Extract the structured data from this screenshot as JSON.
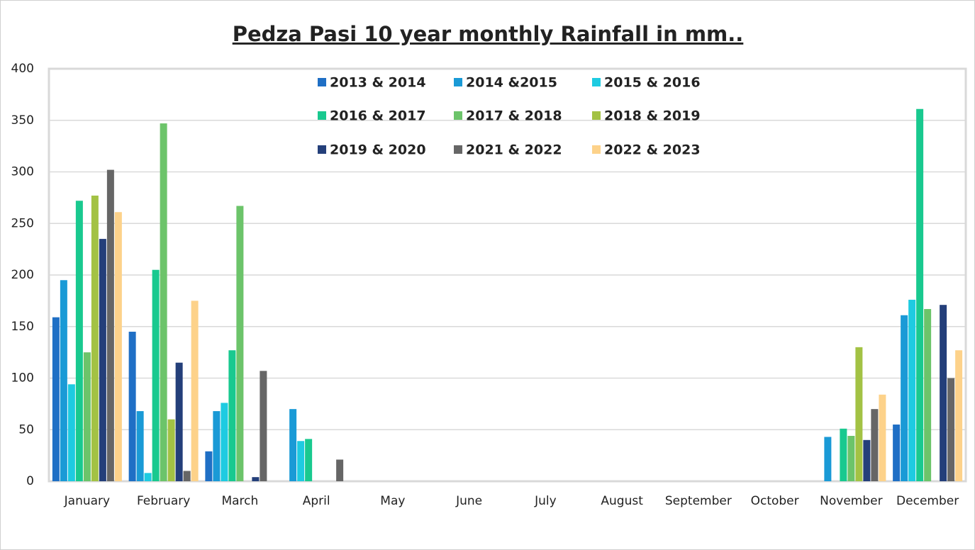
{
  "chart_data": {
    "type": "bar",
    "title": "Pedza Pasi 10 year monthly Rainfall in mm..",
    "categories": [
      "January",
      "February",
      "March",
      "April",
      "May",
      "June",
      "July",
      "August",
      "September",
      "October",
      "November",
      "December"
    ],
    "series": [
      {
        "name": "2013 & 2014",
        "color": "#1f6fc5",
        "values": [
          159,
          145,
          29,
          0,
          0,
          0,
          0,
          0,
          0,
          0,
          0,
          55
        ]
      },
      {
        "name": "2014 &2015",
        "color": "#1a9ad6",
        "values": [
          195,
          68,
          68,
          70,
          0,
          0,
          0,
          0,
          0,
          0,
          43,
          161
        ]
      },
      {
        "name": "2015 & 2016",
        "color": "#1ecbe1",
        "values": [
          94,
          8,
          76,
          39,
          0,
          0,
          0,
          0,
          0,
          0,
          0,
          176
        ]
      },
      {
        "name": "2016 & 2017",
        "color": "#19c98f",
        "values": [
          272,
          205,
          127,
          41,
          0,
          0,
          0,
          0,
          0,
          0,
          51,
          361
        ]
      },
      {
        "name": "2017 & 2018",
        "color": "#6cc46a",
        "values": [
          125,
          347,
          267,
          0,
          0,
          0,
          0,
          0,
          0,
          0,
          44,
          167
        ]
      },
      {
        "name": "2018 & 2019",
        "color": "#a3c244",
        "values": [
          277,
          60,
          0,
          0,
          0,
          0,
          0,
          0,
          0,
          0,
          130,
          0
        ]
      },
      {
        "name": "2019 & 2020",
        "color": "#243f7a",
        "values": [
          235,
          115,
          4,
          0,
          0,
          0,
          0,
          0,
          0,
          0,
          40,
          171
        ]
      },
      {
        "name": "2021 & 2022",
        "color": "#666666",
        "values": [
          302,
          10,
          107,
          21,
          0,
          0,
          0,
          0,
          0,
          0,
          70,
          100
        ]
      },
      {
        "name": "2022 & 2023",
        "color": "#fdd28a",
        "values": [
          261,
          175,
          0,
          0,
          0,
          0,
          0,
          0,
          0,
          0,
          84,
          127
        ]
      }
    ],
    "ylim": [
      0,
      400
    ],
    "yticks": [
      0,
      50,
      100,
      150,
      200,
      250,
      300,
      350,
      400
    ],
    "grid": true
  }
}
